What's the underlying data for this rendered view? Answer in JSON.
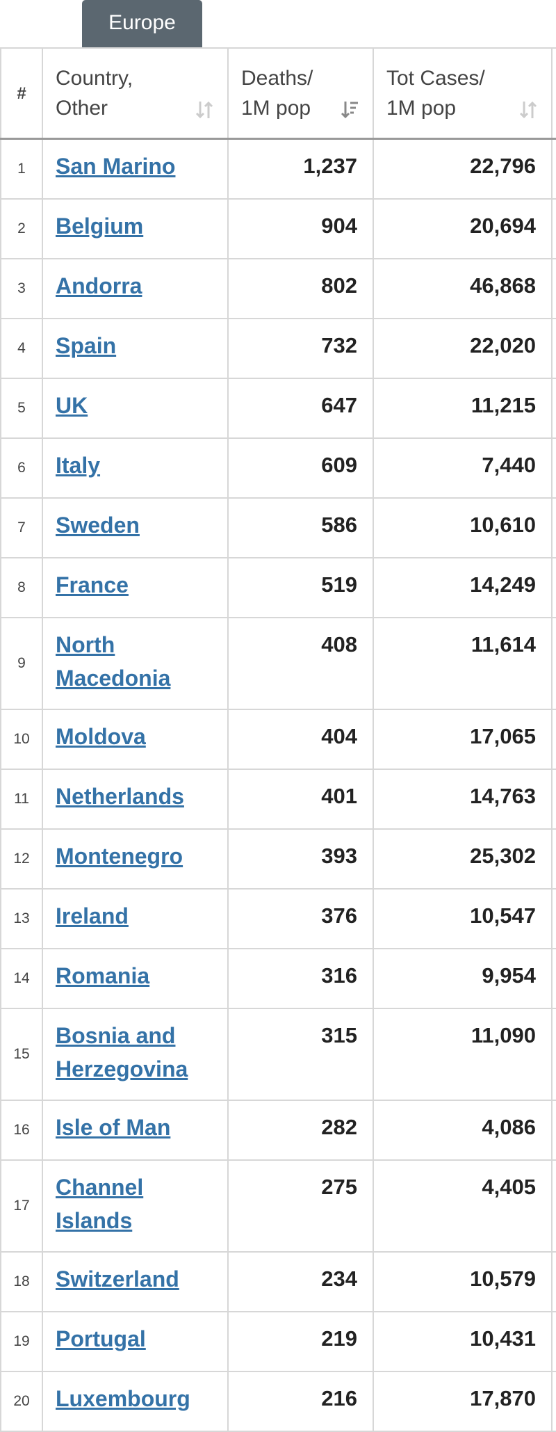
{
  "tab": "Europe",
  "table": {
    "headers": [
      "#",
      "Country, Other",
      "Deaths/ 1M pop",
      "Tot Cases/ 1M pop"
    ],
    "rows": [
      [
        "1",
        "San Marino",
        "1,237",
        "22,796"
      ],
      [
        "2",
        "Belgium",
        "904",
        "20,694"
      ],
      [
        "3",
        "Andorra",
        "802",
        "46,868"
      ],
      [
        "4",
        "Spain",
        "732",
        "22,020"
      ],
      [
        "5",
        "UK",
        "647",
        "11,215"
      ],
      [
        "6",
        "Italy",
        "609",
        "7,440"
      ],
      [
        "7",
        "Sweden",
        "586",
        "10,610"
      ],
      [
        "8",
        "France",
        "519",
        "14,249"
      ],
      [
        "9",
        "North Macedonia",
        "408",
        "11,614"
      ],
      [
        "10",
        "Moldova",
        "404",
        "17,065"
      ],
      [
        "11",
        "Netherlands",
        "401",
        "14,763"
      ],
      [
        "12",
        "Montenegro",
        "393",
        "25,302"
      ],
      [
        "13",
        "Ireland",
        "376",
        "10,547"
      ],
      [
        "14",
        "Romania",
        "316",
        "9,954"
      ],
      [
        "15",
        "Bosnia and Herzegovina",
        "315",
        "11,090"
      ],
      [
        "16",
        "Isle of Man",
        "282",
        "4,086"
      ],
      [
        "17",
        "Channel Islands",
        "275",
        "4,405"
      ],
      [
        "18",
        "Switzerland",
        "234",
        "10,579"
      ],
      [
        "19",
        "Portugal",
        "219",
        "10,431"
      ],
      [
        "20",
        "Luxembourg",
        "216",
        "17,870"
      ]
    ]
  }
}
